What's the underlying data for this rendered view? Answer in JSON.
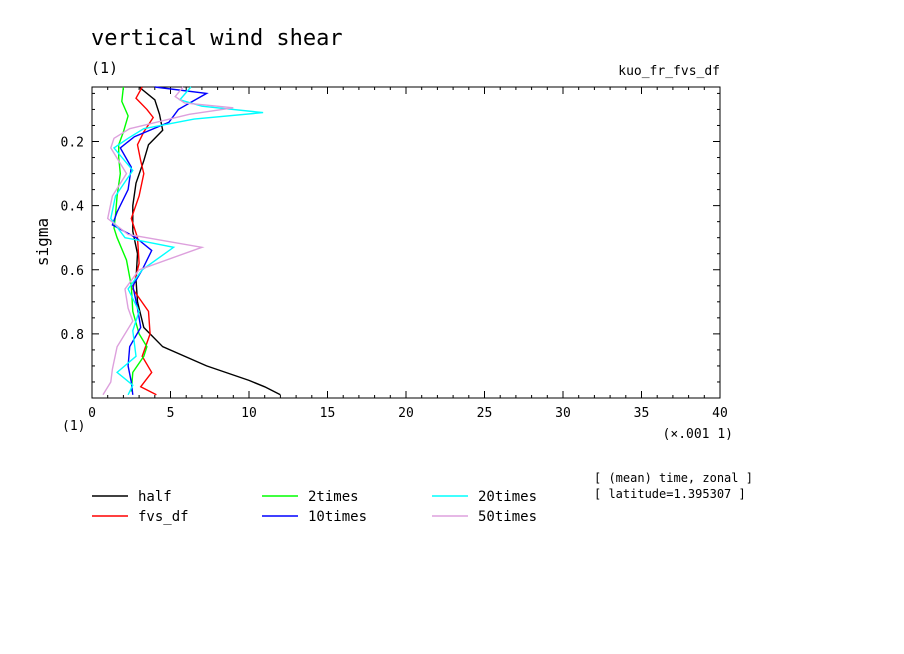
{
  "chart_data": {
    "type": "line",
    "title": "vertical wind shear",
    "subtitle_left": "(1)",
    "subtitle_right": "kuo_fr_fvs_df",
    "ylabel": "sigma",
    "xunit_left": "(1)",
    "xunit_right": "(×.001 1)",
    "xlim": [
      0,
      40
    ],
    "ylim": [
      1.0,
      0.03
    ],
    "x_ticks": [
      "0",
      "5",
      "10",
      "15",
      "20",
      "25",
      "30",
      "35",
      "40"
    ],
    "y_ticks": [
      "0.2",
      "0.4",
      "0.6",
      "0.8"
    ],
    "y_tick_values": [
      0.2,
      0.4,
      0.6,
      0.8
    ],
    "note_line1": "[ (mean) time, zonal ]",
    "note_line2": "[ latitude=1.395307 ]",
    "series": [
      {
        "name": "half",
        "color": "#000000",
        "points": [
          [
            3.0,
            0.03
          ],
          [
            4.0,
            0.07
          ],
          [
            4.3,
            0.115
          ],
          [
            4.5,
            0.165
          ],
          [
            3.6,
            0.21
          ],
          [
            3.3,
            0.26
          ],
          [
            2.8,
            0.33
          ],
          [
            2.6,
            0.4
          ],
          [
            2.6,
            0.48
          ],
          [
            2.9,
            0.55
          ],
          [
            2.8,
            0.63
          ],
          [
            2.9,
            0.7
          ],
          [
            3.3,
            0.78
          ],
          [
            4.5,
            0.84
          ],
          [
            7.3,
            0.9
          ],
          [
            10.0,
            0.945
          ],
          [
            11.0,
            0.965
          ],
          [
            12.0,
            0.99
          ]
        ]
      },
      {
        "name": "fvs_df",
        "color": "#ff0000",
        "points": [
          [
            3.2,
            0.03
          ],
          [
            2.8,
            0.065
          ],
          [
            3.5,
            0.1
          ],
          [
            3.9,
            0.125
          ],
          [
            3.3,
            0.17
          ],
          [
            2.9,
            0.21
          ],
          [
            3.1,
            0.26
          ],
          [
            3.3,
            0.3
          ],
          [
            3.0,
            0.37
          ],
          [
            2.5,
            0.44
          ],
          [
            2.9,
            0.5
          ],
          [
            3.0,
            0.58
          ],
          [
            2.6,
            0.66
          ],
          [
            3.6,
            0.73
          ],
          [
            3.7,
            0.8
          ],
          [
            3.2,
            0.87
          ],
          [
            3.8,
            0.92
          ],
          [
            3.1,
            0.965
          ],
          [
            4.1,
            0.99
          ]
        ]
      },
      {
        "name": "2times",
        "color": "#00ff00",
        "points": [
          [
            2.0,
            0.03
          ],
          [
            1.9,
            0.075
          ],
          [
            2.3,
            0.12
          ],
          [
            2.0,
            0.17
          ],
          [
            1.7,
            0.21
          ],
          [
            1.7,
            0.25
          ],
          [
            1.8,
            0.3
          ],
          [
            1.6,
            0.37
          ],
          [
            1.5,
            0.43
          ],
          [
            1.4,
            0.47
          ],
          [
            1.6,
            0.5
          ],
          [
            2.2,
            0.57
          ],
          [
            2.5,
            0.65
          ],
          [
            2.6,
            0.73
          ],
          [
            3.0,
            0.8
          ],
          [
            3.5,
            0.84
          ],
          [
            3.3,
            0.87
          ],
          [
            2.6,
            0.92
          ],
          [
            2.5,
            0.98
          ]
        ]
      },
      {
        "name": "10times",
        "color": "#0000ff",
        "points": [
          [
            4.0,
            0.03
          ],
          [
            7.3,
            0.05
          ],
          [
            5.5,
            0.1
          ],
          [
            4.9,
            0.14
          ],
          [
            2.7,
            0.185
          ],
          [
            1.8,
            0.22
          ],
          [
            2.5,
            0.28
          ],
          [
            2.3,
            0.35
          ],
          [
            1.6,
            0.42
          ],
          [
            1.3,
            0.46
          ],
          [
            2.8,
            0.5
          ],
          [
            3.8,
            0.54
          ],
          [
            3.2,
            0.6
          ],
          [
            2.6,
            0.65
          ],
          [
            2.9,
            0.72
          ],
          [
            3.1,
            0.78
          ],
          [
            2.4,
            0.84
          ],
          [
            2.3,
            0.9
          ],
          [
            2.5,
            0.95
          ],
          [
            2.6,
            0.99
          ]
        ]
      },
      {
        "name": "20times",
        "color": "#00ffff",
        "points": [
          [
            6.3,
            0.03
          ],
          [
            5.6,
            0.07
          ],
          [
            7.0,
            0.09
          ],
          [
            10.9,
            0.11
          ],
          [
            6.5,
            0.13
          ],
          [
            3.3,
            0.16
          ],
          [
            2.3,
            0.19
          ],
          [
            1.4,
            0.22
          ],
          [
            2.6,
            0.29
          ],
          [
            1.5,
            0.37
          ],
          [
            1.2,
            0.44
          ],
          [
            2.1,
            0.5
          ],
          [
            5.2,
            0.53
          ],
          [
            3.2,
            0.6
          ],
          [
            2.3,
            0.66
          ],
          [
            3.0,
            0.73
          ],
          [
            2.6,
            0.79
          ],
          [
            2.8,
            0.87
          ],
          [
            1.6,
            0.92
          ],
          [
            2.6,
            0.96
          ],
          [
            2.3,
            0.99
          ]
        ]
      },
      {
        "name": "50times",
        "color": "#dda0dd",
        "points": [
          [
            5.8,
            0.03
          ],
          [
            5.3,
            0.06
          ],
          [
            5.9,
            0.08
          ],
          [
            9.0,
            0.095
          ],
          [
            6.2,
            0.115
          ],
          [
            2.4,
            0.16
          ],
          [
            1.4,
            0.19
          ],
          [
            1.2,
            0.22
          ],
          [
            2.2,
            0.3
          ],
          [
            1.3,
            0.37
          ],
          [
            1.0,
            0.44
          ],
          [
            2.3,
            0.49
          ],
          [
            7.0,
            0.53
          ],
          [
            3.0,
            0.6
          ],
          [
            2.1,
            0.66
          ],
          [
            2.3,
            0.72
          ],
          [
            2.6,
            0.76
          ],
          [
            1.6,
            0.84
          ],
          [
            1.3,
            0.91
          ],
          [
            1.2,
            0.95
          ],
          [
            0.7,
            0.99
          ]
        ]
      }
    ]
  }
}
